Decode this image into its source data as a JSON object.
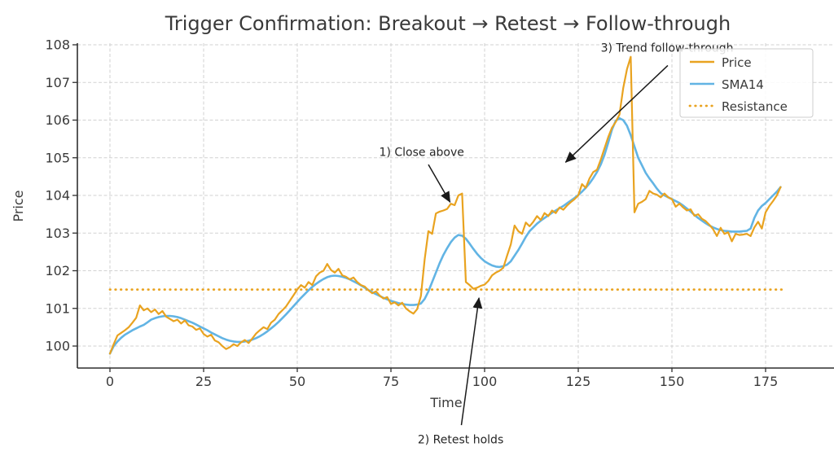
{
  "figure": {
    "background": "#ffffff"
  },
  "chart_data": {
    "type": "line",
    "title": "Trigger Confirmation: Breakout → Retest → Follow-through",
    "xlabel": "Time",
    "ylabel": "Price",
    "xticks": [
      0,
      25,
      50,
      75,
      100,
      125,
      150,
      175
    ],
    "yticks": [
      100,
      101,
      102,
      103,
      104,
      105,
      106,
      107,
      108
    ],
    "xlim": [
      -9,
      193
    ],
    "ylim": [
      99.4,
      108.05
    ],
    "grid": true,
    "legend": {
      "position": "upper right",
      "entries": [
        {
          "label": "Price",
          "color": "#E9A320",
          "style": "solid"
        },
        {
          "label": "SMA14",
          "color": "#62B4E4",
          "style": "solid"
        },
        {
          "label": "Resistance",
          "color": "#E9A320",
          "style": "dotted"
        }
      ]
    },
    "reference_lines": [
      {
        "name": "Resistance",
        "value": 101.5,
        "color": "#E9A320",
        "style": "dotted",
        "x_span": [
          0,
          180
        ]
      }
    ],
    "series": [
      {
        "name": "Price",
        "color": "#E9A320",
        "width": 2.2,
        "values": [
          99.8,
          100.05,
          100.28,
          100.35,
          100.42,
          100.5,
          100.62,
          100.75,
          101.08,
          100.95,
          101.0,
          100.9,
          100.97,
          100.85,
          100.93,
          100.78,
          100.72,
          100.66,
          100.7,
          100.6,
          100.68,
          100.55,
          100.52,
          100.43,
          100.47,
          100.32,
          100.25,
          100.3,
          100.15,
          100.1,
          100.0,
          99.92,
          99.97,
          100.05,
          100.0,
          100.1,
          100.16,
          100.08,
          100.2,
          100.33,
          100.42,
          100.5,
          100.45,
          100.62,
          100.7,
          100.85,
          100.95,
          101.05,
          101.2,
          101.35,
          101.5,
          101.62,
          101.55,
          101.7,
          101.62,
          101.85,
          101.95,
          102.0,
          102.18,
          102.02,
          101.95,
          102.05,
          101.88,
          101.84,
          101.77,
          101.82,
          101.7,
          101.62,
          101.58,
          101.48,
          101.4,
          101.45,
          101.34,
          101.26,
          101.3,
          101.12,
          101.16,
          101.08,
          101.15,
          101.0,
          100.92,
          100.86,
          100.98,
          101.33,
          102.3,
          103.05,
          102.98,
          103.52,
          103.57,
          103.6,
          103.64,
          103.78,
          103.74,
          104.0,
          104.05,
          101.7,
          101.62,
          101.52,
          101.55,
          101.6,
          101.63,
          101.73,
          101.88,
          101.95,
          102.0,
          102.08,
          102.4,
          102.7,
          103.2,
          103.05,
          102.98,
          103.28,
          103.18,
          103.3,
          103.45,
          103.35,
          103.53,
          103.45,
          103.6,
          103.53,
          103.68,
          103.62,
          103.73,
          103.82,
          103.9,
          104.0,
          104.3,
          104.2,
          104.45,
          104.62,
          104.68,
          104.95,
          105.25,
          105.55,
          105.8,
          105.95,
          106.15,
          106.85,
          107.35,
          107.68,
          103.55,
          103.78,
          103.83,
          103.9,
          104.12,
          104.05,
          104.02,
          103.95,
          104.05,
          103.95,
          103.9,
          103.7,
          103.78,
          103.68,
          103.6,
          103.63,
          103.46,
          103.5,
          103.38,
          103.32,
          103.22,
          103.1,
          102.92,
          103.14,
          102.98,
          103.02,
          102.78,
          102.98,
          102.95,
          102.96,
          102.98,
          102.92,
          103.15,
          103.3,
          103.12,
          103.55,
          103.72,
          103.85,
          104.0,
          104.22
        ]
      },
      {
        "name": "SMA14",
        "color": "#62B4E4",
        "width": 2.6,
        "values": [
          99.8,
          100.0,
          100.12,
          100.22,
          100.3,
          100.36,
          100.42,
          100.47,
          100.52,
          100.56,
          100.63,
          100.7,
          100.74,
          100.77,
          100.79,
          100.8,
          100.8,
          100.79,
          100.77,
          100.74,
          100.7,
          100.66,
          100.62,
          100.57,
          100.52,
          100.47,
          100.42,
          100.36,
          100.31,
          100.26,
          100.21,
          100.17,
          100.14,
          100.12,
          100.11,
          100.11,
          100.12,
          100.14,
          100.17,
          100.21,
          100.26,
          100.32,
          100.39,
          100.47,
          100.55,
          100.64,
          100.74,
          100.84,
          100.95,
          101.06,
          101.17,
          101.28,
          101.38,
          101.48,
          101.57,
          101.65,
          101.72,
          101.78,
          101.83,
          101.86,
          101.87,
          101.86,
          101.84,
          101.81,
          101.77,
          101.72,
          101.67,
          101.61,
          101.55,
          101.49,
          101.43,
          101.38,
          101.33,
          101.28,
          101.24,
          101.2,
          101.17,
          101.14,
          101.12,
          101.1,
          101.09,
          101.09,
          101.1,
          101.13,
          101.25,
          101.45,
          101.7,
          101.95,
          102.2,
          102.42,
          102.6,
          102.76,
          102.88,
          102.95,
          102.93,
          102.85,
          102.72,
          102.58,
          102.45,
          102.34,
          102.25,
          102.19,
          102.14,
          102.11,
          102.1,
          102.12,
          102.16,
          102.25,
          102.4,
          102.55,
          102.72,
          102.9,
          103.05,
          103.15,
          103.25,
          103.33,
          103.4,
          103.47,
          103.54,
          103.6,
          103.66,
          103.72,
          103.79,
          103.86,
          103.93,
          104.01,
          104.1,
          104.2,
          104.32,
          104.46,
          104.62,
          104.82,
          105.08,
          105.4,
          105.75,
          105.98,
          106.05,
          106.0,
          105.85,
          105.6,
          105.3,
          105.0,
          104.8,
          104.6,
          104.45,
          104.32,
          104.18,
          104.06,
          104.0,
          103.95,
          103.9,
          103.85,
          103.8,
          103.73,
          103.65,
          103.57,
          103.48,
          103.4,
          103.33,
          103.26,
          103.2,
          103.15,
          103.11,
          103.08,
          103.06,
          103.05,
          103.04,
          103.04,
          103.04,
          103.05,
          103.06,
          103.12,
          103.4,
          103.6,
          103.72,
          103.8,
          103.9,
          104.0,
          104.1,
          104.22
        ]
      }
    ],
    "annotations": [
      {
        "label": "1) Close above",
        "text_xy": [
          83.2,
          105.05
        ],
        "arrow_from": [
          85.0,
          104.82
        ],
        "arrow_to": [
          90.8,
          103.82
        ],
        "anchor": "middle"
      },
      {
        "label": "2) Retest holds",
        "text_xy": [
          93.6,
          97.42
        ],
        "arrow_from": [
          93.8,
          97.9
        ],
        "arrow_to": [
          98.5,
          101.28
        ],
        "anchor": "middle"
      },
      {
        "label": "3) Trend follow-through",
        "text_xy": [
          131.0,
          107.82
        ],
        "arrow_from": [
          148.9,
          107.45
        ],
        "arrow_to": [
          121.6,
          104.88
        ],
        "anchor": "start"
      }
    ]
  }
}
